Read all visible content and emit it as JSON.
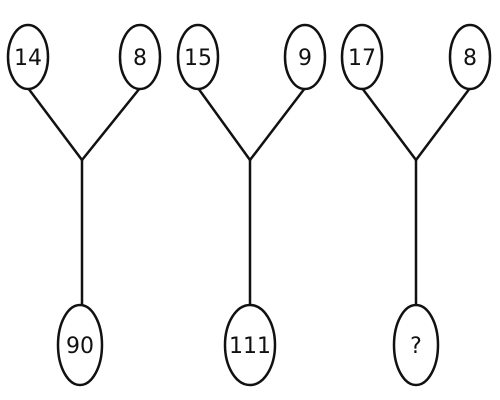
{
  "puzzle": {
    "trees": [
      {
        "top_left": "14",
        "top_right": "8",
        "bottom": "90"
      },
      {
        "top_left": "15",
        "top_right": "9",
        "bottom": "111"
      },
      {
        "top_left": "17",
        "top_right": "8",
        "bottom": "?"
      }
    ]
  }
}
